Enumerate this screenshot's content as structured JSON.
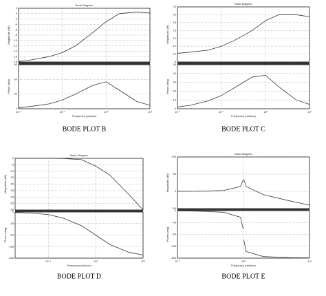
{
  "chart_data": [
    {
      "type": "bode",
      "title": "Bode Diagram",
      "caption": "BODE PLOT B",
      "xlabel": "Frequency (rad/sec)",
      "log_x": true,
      "grid": true,
      "color": "#333333",
      "x": [
        0.01,
        0.02,
        0.05,
        0.1,
        0.2,
        0.5,
        1,
        2,
        5,
        10
      ],
      "xlim": [
        0.01,
        10
      ],
      "xticks": [
        {
          "value": 0.01,
          "label": "10⁻²"
        },
        {
          "value": 0.1,
          "label": "10⁻¹"
        },
        {
          "value": 1,
          "label": "10⁰"
        },
        {
          "value": 10,
          "label": "10¹"
        }
      ],
      "magnitude": {
        "ylabel": "Magnitude (dB)",
        "ylim": [
          -18,
          2
        ],
        "yticks": [
          -18,
          -16,
          -14,
          -12,
          -10,
          -8,
          -6,
          -4,
          -2,
          0,
          2
        ],
        "values": [
          -17.8,
          -17.2,
          -16,
          -14.5,
          -12,
          -7,
          -3,
          0,
          0.6,
          0.2
        ]
      },
      "phase": {
        "ylabel": "Phase (deg)",
        "ylim": [
          0,
          90
        ],
        "yticks": [
          0,
          30,
          60,
          90
        ],
        "values": [
          2,
          5,
          10,
          18,
          30,
          48,
          55,
          38,
          15,
          7
        ]
      }
    },
    {
      "type": "bode",
      "title": "Bode Diagram",
      "caption": "BODE PLOT C",
      "xlabel": "Frequency (rad/sec)",
      "log_x": true,
      "grid": true,
      "color": "#333333",
      "x": [
        0.01,
        0.02,
        0.05,
        0.1,
        0.2,
        0.5,
        1,
        2,
        5,
        10
      ],
      "xlim": [
        0.01,
        10
      ],
      "xticks": [
        {
          "value": 0.01,
          "label": "10⁻²"
        },
        {
          "value": 0.1,
          "label": "10⁻¹"
        },
        {
          "value": 1,
          "label": "10⁰"
        },
        {
          "value": 10,
          "label": "10¹"
        }
      ],
      "magnitude": {
        "ylabel": "Magnitude (dB)",
        "ylim": [
          8,
          22
        ],
        "yticks": [
          8,
          10,
          12,
          14,
          16,
          18,
          20,
          22
        ],
        "values": [
          10.2,
          10.5,
          11,
          12,
          13.5,
          16,
          18.5,
          20,
          20,
          19.5
        ]
      },
      "phase": {
        "ylabel": "Phase (deg)",
        "ylim": [
          0,
          50
        ],
        "yticks": [
          0,
          10,
          20,
          30,
          40,
          50
        ],
        "values": [
          2,
          4,
          9,
          15,
          24,
          36,
          38,
          25,
          10,
          5
        ]
      }
    },
    {
      "type": "bode",
      "title": "Bode Diagram",
      "caption": "BODE PLOT D",
      "xlabel": "Frequency (rad/sec)",
      "log_x": true,
      "grid": true,
      "color": "#333333",
      "x": [
        0.02,
        0.05,
        0.1,
        0.2,
        0.5,
        1,
        2,
        5,
        10
      ],
      "xlim": [
        0.02,
        10
      ],
      "xticks": [
        {
          "value": 0.1,
          "label": "10⁻¹"
        },
        {
          "value": 1,
          "label": "10⁰"
        },
        {
          "value": 10,
          "label": "10¹"
        }
      ],
      "magnitude": {
        "ylabel": "Magnitude (dB)",
        "ylim": [
          -40,
          0
        ],
        "yticks": [
          -40,
          -35,
          -30,
          -25,
          -20,
          -15,
          -10,
          -5,
          0
        ],
        "values": [
          0,
          0,
          0,
          -0.1,
          -1,
          -6,
          -13,
          -28,
          -40
        ]
      },
      "phase": {
        "ylabel": "Phase (deg)",
        "ylim": [
          -180,
          0
        ],
        "yticks": [
          -180,
          -135,
          -90,
          -45,
          0
        ],
        "values": [
          -2,
          -5,
          -10,
          -23,
          -53,
          -90,
          -127,
          -157,
          -168
        ]
      }
    },
    {
      "type": "bode",
      "title": "Bode Diagram",
      "caption": "BODE PLOT E",
      "xlabel": "Frequency (rad/sec)",
      "log_x": true,
      "grid": true,
      "color": "#333333",
      "x": [
        0.1,
        0.2,
        0.5,
        0.9,
        0.99,
        1,
        1.01,
        1.1,
        2,
        5,
        10
      ],
      "xlim": [
        0.1,
        10
      ],
      "xticks": [
        {
          "value": 0.1,
          "label": "10⁻¹"
        },
        {
          "value": 1,
          "label": "10⁰"
        },
        {
          "value": 10,
          "label": "10¹"
        }
      ],
      "magnitude": {
        "ylabel": "Magnitude (dB)",
        "ylim": [
          -50,
          100
        ],
        "yticks": [
          -50,
          0,
          50,
          100
        ],
        "values": [
          0.1,
          0.4,
          2.5,
          14,
          34,
          null,
          34,
          14,
          -9.5,
          -27.6,
          -40
        ]
      },
      "phase": {
        "ylabel": "Phase (deg)",
        "ylim": [
          -180,
          0
        ],
        "yticks": [
          -180,
          -135,
          -90,
          -45,
          0
        ],
        "values": [
          -1,
          -2,
          -6,
          -25,
          -70,
          null,
          -110,
          -155,
          -174,
          -178,
          -179
        ]
      }
    }
  ]
}
